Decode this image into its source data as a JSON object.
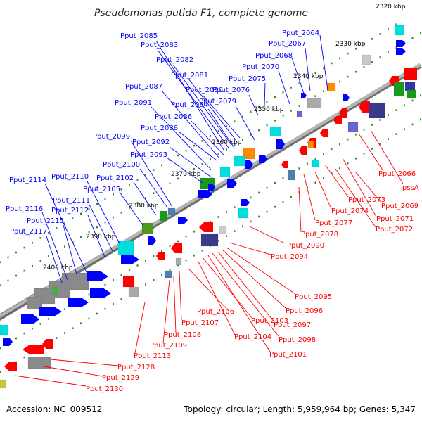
{
  "title": "Pseudomonas putida F1, complete genome",
  "footer": {
    "accession": "Accession: NC_009512",
    "summary": "Topology: circular; Length: 5,959,964 bp; Genes: 5,347"
  },
  "colors": {
    "forward_label": "#0000ff",
    "reverse_label": "#ff0000",
    "backbone": "#808080",
    "tick": "#2e8b2e"
  },
  "kbp_ticks": [
    "2320 kbp",
    "2330 kbp",
    "2340 kbp",
    "2350 kbp",
    "2360 kbp",
    "2370 kbp",
    "2380 kbp",
    "2390 kbp",
    "2400 kbp"
  ],
  "forward_labels": [
    "Pput_2064",
    "Pput_2067",
    "Pput_2068",
    "Pput_2070",
    "Pput_2075",
    "Pput_2076",
    "Pput_2079",
    "Pput_2080",
    "Pput_2081",
    "Pput_2082",
    "Pput_2083",
    "Pput_2084",
    "Pput_2085",
    "Pput_2086",
    "Pput_2087",
    "Pput_2088",
    "Pput_2091",
    "Pput_2092",
    "Pput_2093",
    "Pput_2099",
    "Pput_2100",
    "Pput_2102",
    "Pput_2105",
    "Pput_2110",
    "Pput_2111",
    "Pput_2112",
    "Pput_2114",
    "Pput_2115",
    "Pput_2116",
    "Pput_2117"
  ],
  "reverse_labels": [
    "Pput_2066",
    "pssA",
    "Pput_2069",
    "Pput_2071",
    "Pput_2072",
    "Pput_2073",
    "Pput_2074",
    "Pput_2077",
    "Pput_2078",
    "Pput_2090",
    "Pput_2094",
    "Pput_2095",
    "Pput_2096",
    "Pput_2097",
    "Pput_2098",
    "Pput_2101",
    "Pput_2103",
    "Pput_2104",
    "Pput_2106",
    "Pput_2107",
    "Pput_2108",
    "Pput_2109",
    "Pput_2113",
    "Pput_2128",
    "Pput_2129",
    "Pput_2130"
  ]
}
